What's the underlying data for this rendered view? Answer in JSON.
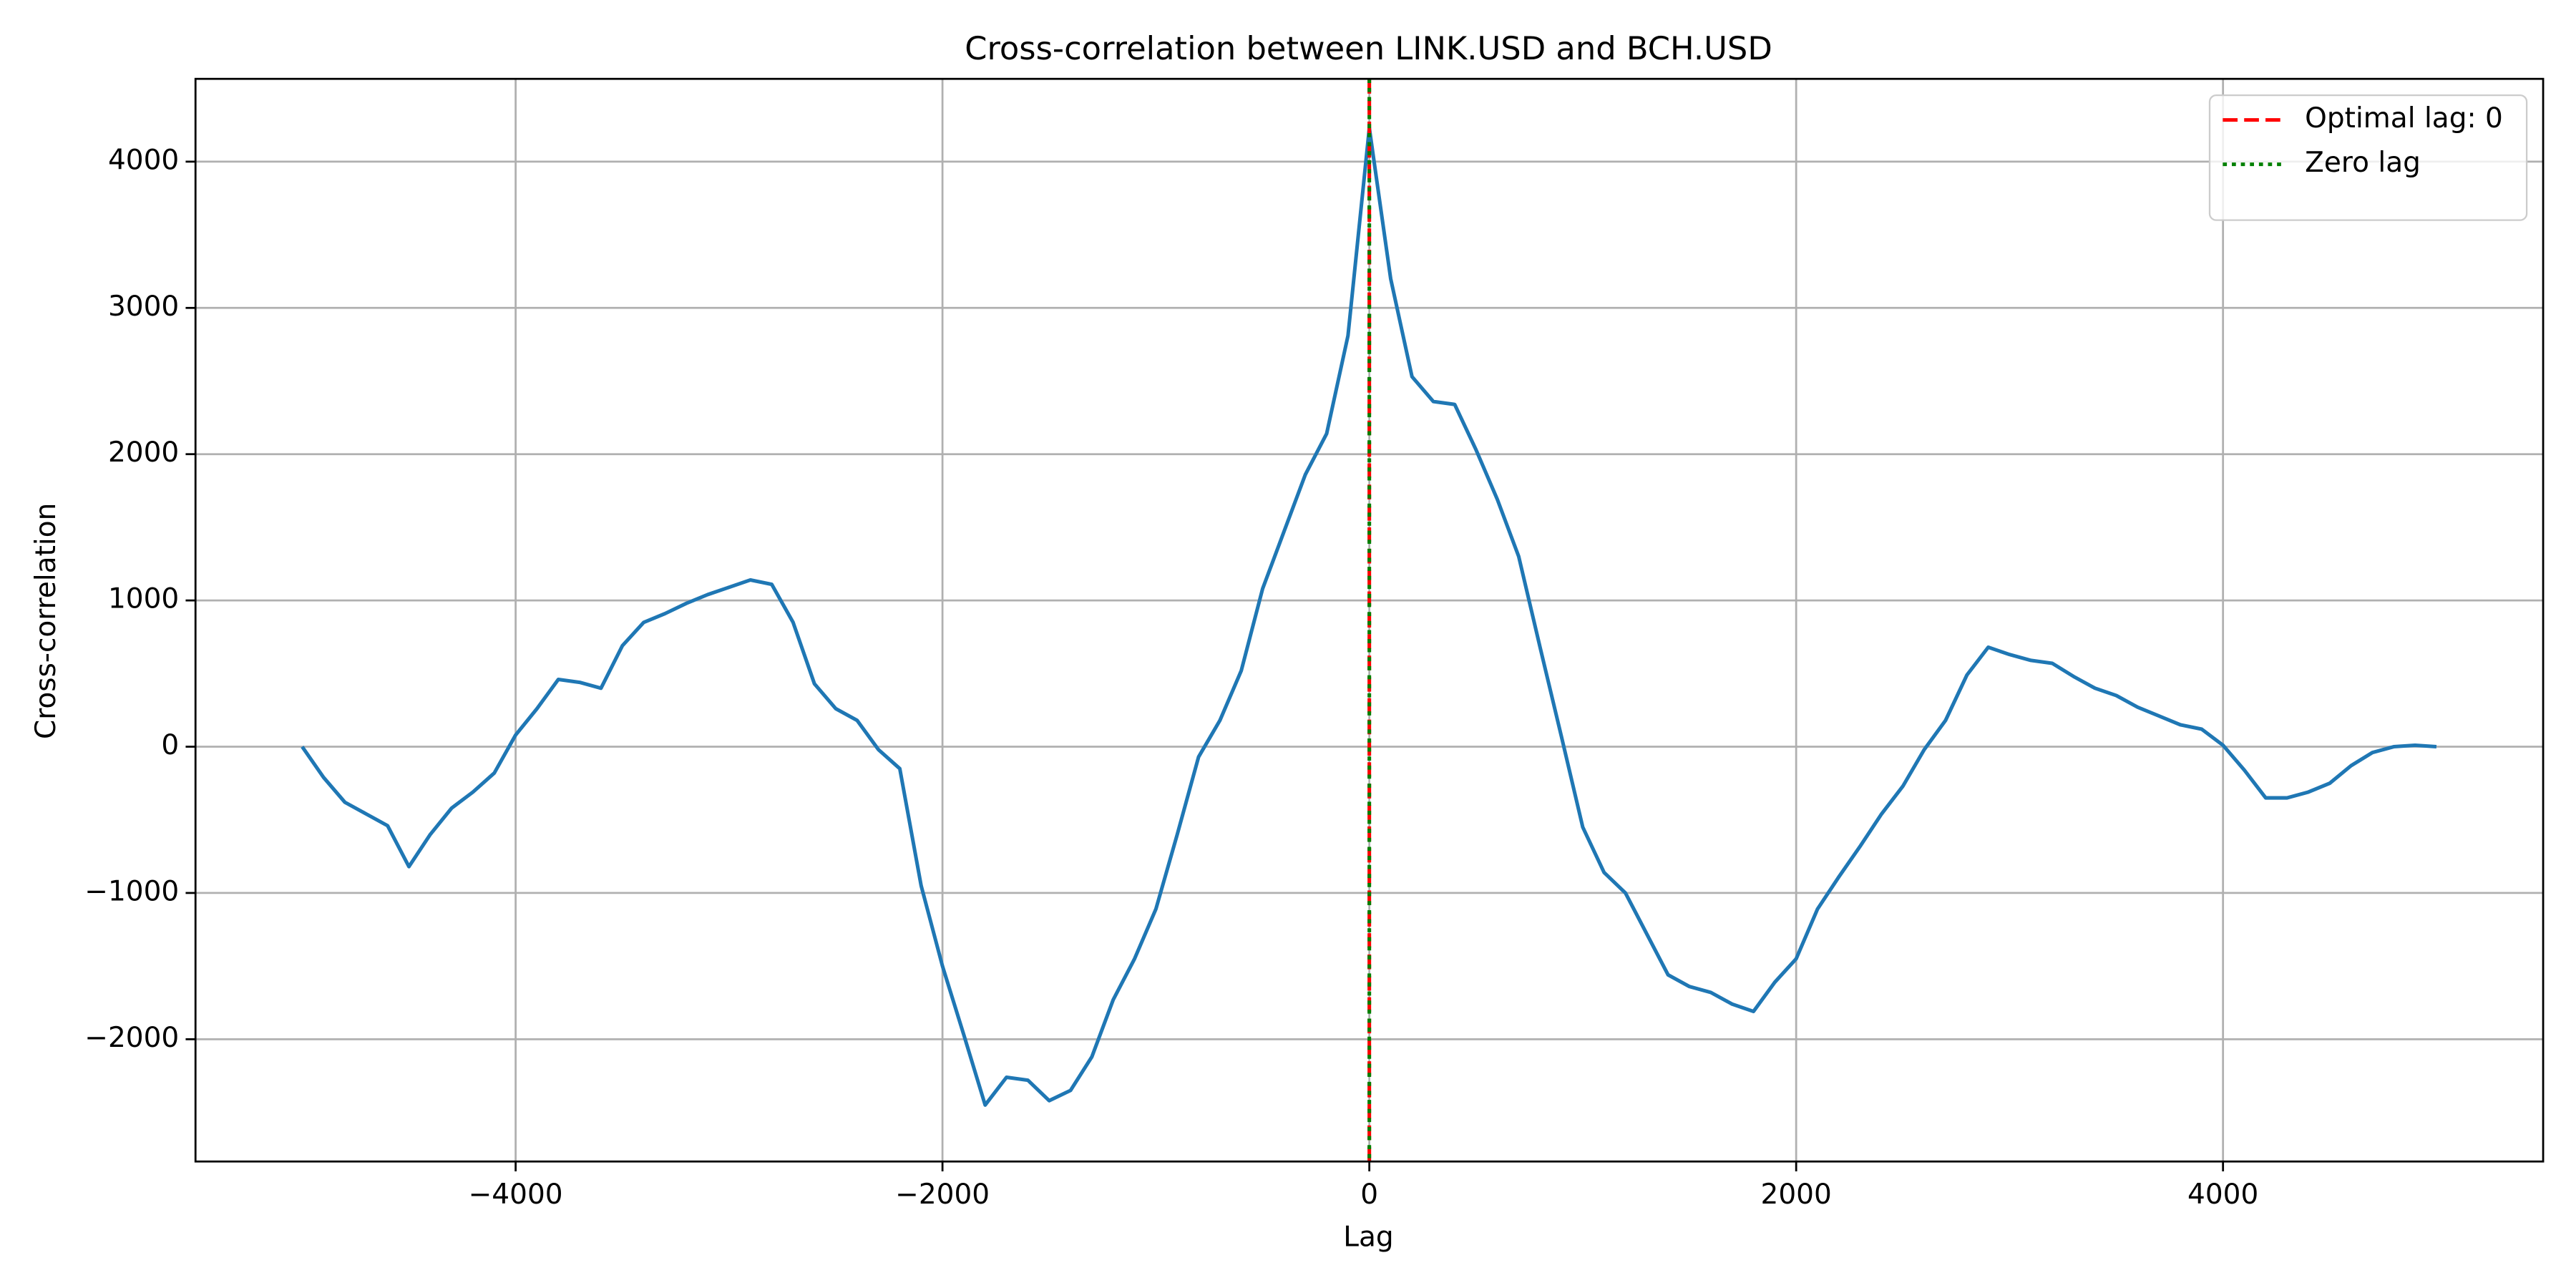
{
  "chart_data": {
    "type": "line",
    "title": "Cross-correlation between LINK.USD and BCH.USD",
    "x_label": "Lag",
    "y_label": "Cross-correlation",
    "x": [
      -5000,
      -4900,
      -4800,
      -4700,
      -4600,
      -4500,
      -4400,
      -4300,
      -4200,
      -4100,
      -4000,
      -3900,
      -3800,
      -3700,
      -3600,
      -3500,
      -3400,
      -3300,
      -3200,
      -3100,
      -3000,
      -2900,
      -2800,
      -2700,
      -2600,
      -2500,
      -2400,
      -2300,
      -2200,
      -2100,
      -2000,
      -1900,
      -1800,
      -1700,
      -1600,
      -1500,
      -1400,
      -1300,
      -1200,
      -1100,
      -1000,
      -900,
      -800,
      -700,
      -600,
      -500,
      -400,
      -300,
      -200,
      -100,
      0,
      100,
      200,
      300,
      400,
      500,
      600,
      700,
      800,
      900,
      1000,
      1100,
      1200,
      1300,
      1400,
      1500,
      1600,
      1700,
      1800,
      1900,
      2000,
      2100,
      2200,
      2300,
      2400,
      2500,
      2600,
      2700,
      2800,
      2900,
      3000,
      3100,
      3200,
      3300,
      3400,
      3500,
      3600,
      3700,
      3800,
      3900,
      4000,
      4100,
      4200,
      4300,
      4400,
      4500,
      4600,
      4700,
      4800,
      4900,
      5000
    ],
    "series": [
      {
        "color": "#1f77b4",
        "values": [
          0,
          -210,
          -380,
          -460,
          -540,
          -820,
          -600,
          -420,
          -310,
          -180,
          80,
          260,
          460,
          440,
          400,
          690,
          850,
          910,
          980,
          1040,
          1090,
          1140,
          1110,
          850,
          430,
          260,
          180,
          -20,
          -150,
          -950,
          -1500,
          -1970,
          -2450,
          -2260,
          -2280,
          -2420,
          -2350,
          -2120,
          -1730,
          -1450,
          -1110,
          -600,
          -70,
          180,
          520,
          1080,
          1470,
          1860,
          2140,
          2810,
          4230,
          3200,
          2530,
          2360,
          2340,
          2030,
          1690,
          1300,
          680,
          70,
          -550,
          -860,
          -1000,
          -1280,
          -1560,
          -1640,
          -1680,
          -1760,
          -1810,
          -1610,
          -1450,
          -1110,
          -890,
          -680,
          -460,
          -270,
          -20,
          180,
          490,
          680,
          630,
          590,
          570,
          480,
          400,
          350,
          270,
          210,
          150,
          120,
          10,
          -160,
          -350,
          -350,
          -310,
          -250,
          -130,
          -40,
          0,
          10,
          0
        ]
      }
    ],
    "vlines": [
      {
        "x": 0,
        "name": "Optimal lag: 0",
        "color": "#ff0000",
        "style": "dashed"
      },
      {
        "x": 0,
        "name": "Zero lag",
        "color": "#008000",
        "style": "dotted"
      }
    ],
    "xlim": [
      -5500,
      5500
    ],
    "xticks": [
      {
        "value": -4000,
        "label": "−4000"
      },
      {
        "value": -2000,
        "label": "−2000"
      },
      0,
      2000,
      4000
    ],
    "ylim": [
      -2836,
      4566
    ],
    "yticks": [
      {
        "value": -2000,
        "label": "−2000"
      },
      {
        "value": -1000,
        "label": "−1000"
      },
      0,
      1000,
      2000,
      3000,
      4000
    ],
    "grid": true,
    "legend": "upper right"
  }
}
